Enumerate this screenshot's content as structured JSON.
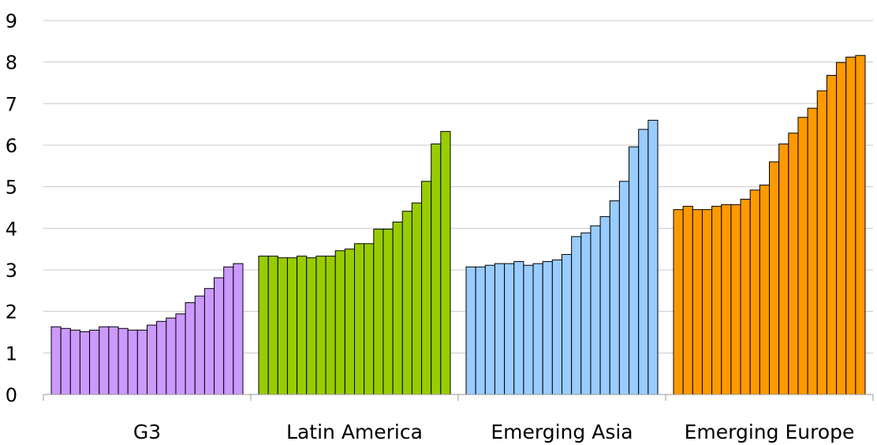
{
  "chart_data": {
    "type": "bar",
    "title": "",
    "xlabel": "",
    "ylabel": "",
    "ylim": [
      0,
      9
    ],
    "yticks": [
      0,
      1,
      2,
      3,
      4,
      5,
      6,
      7,
      8,
      9
    ],
    "grid": true,
    "legend": "none",
    "groups": [
      {
        "category": "G3",
        "color": "#cc99ff",
        "values": [
          1.63,
          1.59,
          1.55,
          1.51,
          1.55,
          1.63,
          1.63,
          1.59,
          1.55,
          1.55,
          1.67,
          1.76,
          1.84,
          1.94,
          2.21,
          2.37,
          2.55,
          2.81,
          3.07,
          3.15
        ]
      },
      {
        "category": "Latin America",
        "color": "#99cc00",
        "values": [
          3.33,
          3.33,
          3.29,
          3.29,
          3.33,
          3.29,
          3.33,
          3.33,
          3.46,
          3.5,
          3.63,
          3.63,
          3.98,
          3.98,
          4.15,
          4.41,
          4.61,
          5.13,
          6.03,
          6.33
        ]
      },
      {
        "category": "Emerging Asia",
        "color": "#99ccff",
        "values": [
          3.07,
          3.07,
          3.11,
          3.15,
          3.15,
          3.2,
          3.11,
          3.15,
          3.2,
          3.24,
          3.37,
          3.8,
          3.89,
          4.06,
          4.28,
          4.66,
          5.13,
          5.96,
          6.38,
          6.6
        ]
      },
      {
        "category": "Emerging Europe",
        "color": "#ff9900",
        "values": [
          4.45,
          4.53,
          4.45,
          4.45,
          4.53,
          4.57,
          4.57,
          4.7,
          4.92,
          5.04,
          5.6,
          6.03,
          6.29,
          6.67,
          6.89,
          7.31,
          7.68,
          7.99,
          8.12,
          8.16
        ]
      }
    ]
  }
}
